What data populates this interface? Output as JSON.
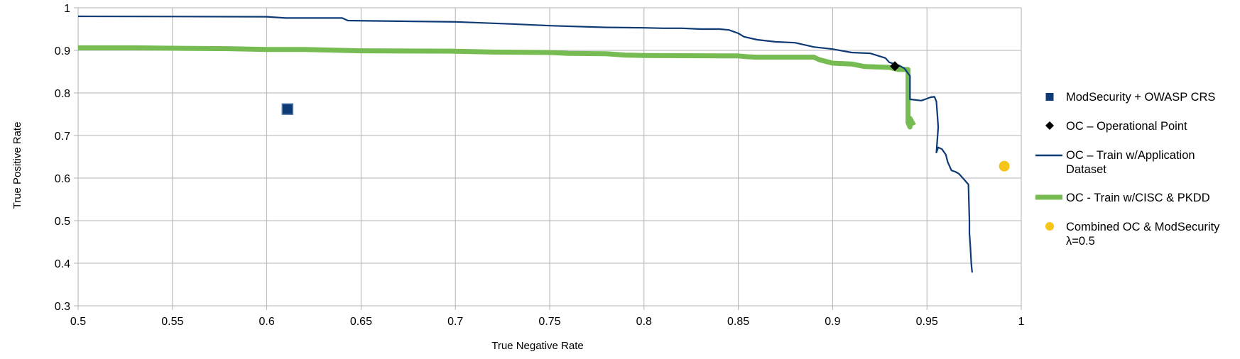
{
  "chart_data": {
    "type": "scatter",
    "xlabel": "True Negative Rate",
    "ylabel": "True Positive Rate",
    "xlim": [
      0.5,
      1
    ],
    "ylim": [
      0.3,
      1
    ],
    "x_ticks": [
      "0.5",
      "0.55",
      "0.6",
      "0.65",
      "0.7",
      "0.75",
      "0.8",
      "0.85",
      "0.9",
      "0.95",
      "1"
    ],
    "y_ticks": [
      "0.3",
      "0.4",
      "0.5",
      "0.6",
      "0.7",
      "0.8",
      "0.9",
      "1"
    ],
    "grid": true,
    "legend_position": "right",
    "series": [
      {
        "name": "ModSecurity + OWASP CRS",
        "kind": "square-marker",
        "color": "#0e3a75",
        "points": [
          [
            0.611,
            0.762
          ]
        ]
      },
      {
        "name": "OC – Operational Point",
        "kind": "diamond-marker",
        "color": "#000000",
        "points": [
          [
            0.933,
            0.863
          ]
        ]
      },
      {
        "name": "OC – Train w/Application Dataset",
        "kind": "line",
        "color": "#0e3a75",
        "points": [
          [
            0.5,
            0.98
          ],
          [
            0.6,
            0.979
          ],
          [
            0.61,
            0.976
          ],
          [
            0.64,
            0.976
          ],
          [
            0.643,
            0.97
          ],
          [
            0.7,
            0.967
          ],
          [
            0.73,
            0.962
          ],
          [
            0.75,
            0.958
          ],
          [
            0.78,
            0.954
          ],
          [
            0.8,
            0.953
          ],
          [
            0.81,
            0.952
          ],
          [
            0.82,
            0.952
          ],
          [
            0.83,
            0.95
          ],
          [
            0.84,
            0.95
          ],
          [
            0.845,
            0.948
          ],
          [
            0.85,
            0.94
          ],
          [
            0.853,
            0.932
          ],
          [
            0.86,
            0.925
          ],
          [
            0.87,
            0.92
          ],
          [
            0.88,
            0.918
          ],
          [
            0.89,
            0.908
          ],
          [
            0.9,
            0.903
          ],
          [
            0.91,
            0.895
          ],
          [
            0.92,
            0.893
          ],
          [
            0.928,
            0.882
          ],
          [
            0.93,
            0.872
          ],
          [
            0.935,
            0.865
          ],
          [
            0.938,
            0.858
          ],
          [
            0.941,
            0.84
          ],
          [
            0.941,
            0.785
          ],
          [
            0.947,
            0.782
          ],
          [
            0.949,
            0.785
          ],
          [
            0.952,
            0.79
          ],
          [
            0.954,
            0.791
          ],
          [
            0.955,
            0.78
          ],
          [
            0.956,
            0.72
          ],
          [
            0.955,
            0.66
          ],
          [
            0.956,
            0.672
          ],
          [
            0.958,
            0.668
          ],
          [
            0.96,
            0.655
          ],
          [
            0.961,
            0.638
          ],
          [
            0.963,
            0.618
          ],
          [
            0.965,
            0.615
          ],
          [
            0.967,
            0.61
          ],
          [
            0.969,
            0.6
          ],
          [
            0.971,
            0.59
          ],
          [
            0.972,
            0.585
          ],
          [
            0.9725,
            0.5
          ],
          [
            0.9725,
            0.47
          ],
          [
            0.973,
            0.44
          ],
          [
            0.9735,
            0.4
          ],
          [
            0.974,
            0.378
          ]
        ]
      },
      {
        "name": "OC - Train w/CISC & PKDD",
        "kind": "line",
        "color": "#77bc52",
        "points": [
          [
            0.5,
            0.906
          ],
          [
            0.53,
            0.906
          ],
          [
            0.55,
            0.905
          ],
          [
            0.58,
            0.904
          ],
          [
            0.6,
            0.902
          ],
          [
            0.62,
            0.902
          ],
          [
            0.65,
            0.899
          ],
          [
            0.7,
            0.898
          ],
          [
            0.72,
            0.896
          ],
          [
            0.75,
            0.895
          ],
          [
            0.76,
            0.893
          ],
          [
            0.78,
            0.892
          ],
          [
            0.79,
            0.889
          ],
          [
            0.8,
            0.888
          ],
          [
            0.85,
            0.887
          ],
          [
            0.855,
            0.885
          ],
          [
            0.86,
            0.884
          ],
          [
            0.89,
            0.884
          ],
          [
            0.893,
            0.878
          ],
          [
            0.9,
            0.87
          ],
          [
            0.91,
            0.868
          ],
          [
            0.917,
            0.862
          ],
          [
            0.93,
            0.86
          ],
          [
            0.935,
            0.855
          ],
          [
            0.94,
            0.855
          ],
          [
            0.94,
            0.73
          ],
          [
            0.941,
            0.72
          ],
          [
            0.941,
            0.74
          ],
          [
            0.943,
            0.724
          ]
        ]
      },
      {
        "name": "Combined OC & ModSecurity λ=0.5",
        "kind": "circle-marker",
        "color": "#f5c518",
        "points": [
          [
            0.991,
            0.628
          ]
        ]
      }
    ]
  },
  "legend": {
    "items": [
      {
        "line1": "ModSecurity + OWASP CRS",
        "line2": ""
      },
      {
        "line1": "OC – Operational Point",
        "line2": ""
      },
      {
        "line1": "OC – Train w/Application",
        "line2": "Dataset"
      },
      {
        "line1": "OC - Train w/CISC & PKDD",
        "line2": ""
      },
      {
        "line1": "Combined OC & ModSecurity",
        "line2": "λ=0.5"
      }
    ]
  }
}
